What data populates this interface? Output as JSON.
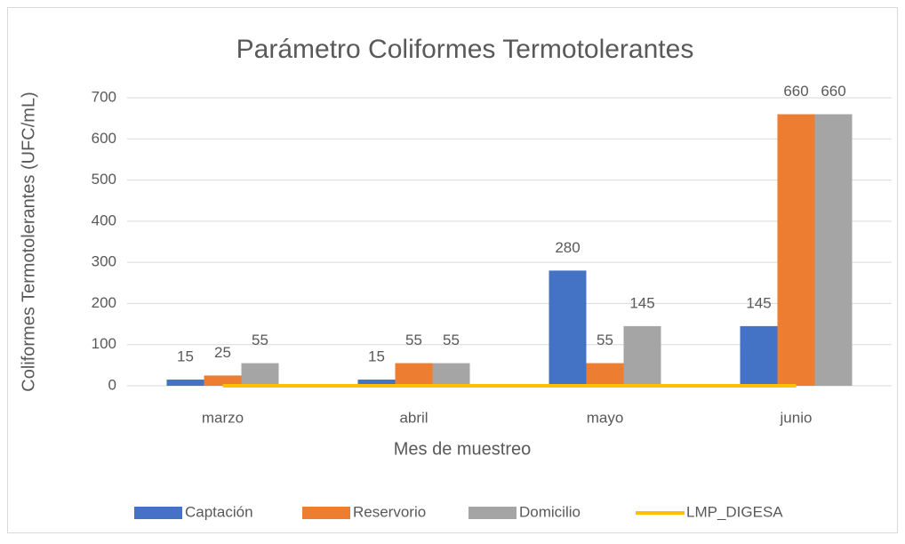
{
  "chart_data": {
    "type": "bar",
    "title": "Parámetro Coliformes Termotolerantes",
    "x_label": "Mes de muestreo",
    "y_label": "Coliformes Termotolerantes (UFC/mL)",
    "categories": [
      "marzo",
      "abril",
      "mayo",
      "junio"
    ],
    "series": [
      {
        "name": "Captación",
        "color": "#4472c4",
        "values": [
          15,
          15,
          280,
          145
        ]
      },
      {
        "name": "Reservorio",
        "color": "#ed7d31",
        "values": [
          25,
          55,
          55,
          660
        ]
      },
      {
        "name": "Domicilio",
        "color": "#a5a5a5",
        "values": [
          55,
          55,
          145,
          660
        ]
      },
      {
        "name": "LMP_DIGESA",
        "color": "#ffc000",
        "type": "line",
        "values": [
          0,
          0,
          0,
          0
        ]
      }
    ],
    "ylim": [
      0,
      700
    ],
    "yticks": [
      0,
      100,
      200,
      300,
      400,
      500,
      600,
      700
    ],
    "grid": true,
    "legend": "bottom"
  }
}
